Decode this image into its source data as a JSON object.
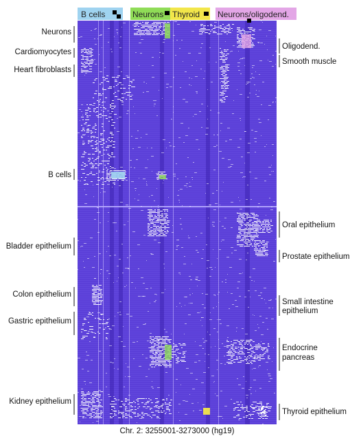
{
  "chart_data": {
    "type": "heatmap",
    "title": "",
    "xlabel": "Chr. 2: 3255001-3273000 (hg19)",
    "ylabel": "",
    "column_groups": [
      {
        "name": "B cells",
        "color": "#9fd3f0"
      },
      {
        "name": "Neurons",
        "color": "#8fdc57"
      },
      {
        "name": "Thyroid",
        "color": "#f2e64a"
      },
      {
        "name": "Neurons/oligodend.",
        "color": "#e3a6e6"
      }
    ],
    "left_row_groups": [
      "Neurons",
      "Cardiomyocytes",
      "Heart fibroblasts",
      "B cells",
      "Bladder epithelium",
      "Colon epithelium",
      "Gastric epithelium",
      "Kidney epithelium"
    ],
    "right_row_groups": [
      "Oligodend.",
      "Smooth muscle",
      "Oral epithelium",
      "Prostate epithelium",
      "Small intestine epithelium",
      "Endocrine pancreas",
      "Thyroid epithelium"
    ],
    "colors": {
      "background": "#5b3fd8",
      "stripe": "#7058e8",
      "signal": "#ffffff",
      "marker": "#000000"
    }
  }
}
